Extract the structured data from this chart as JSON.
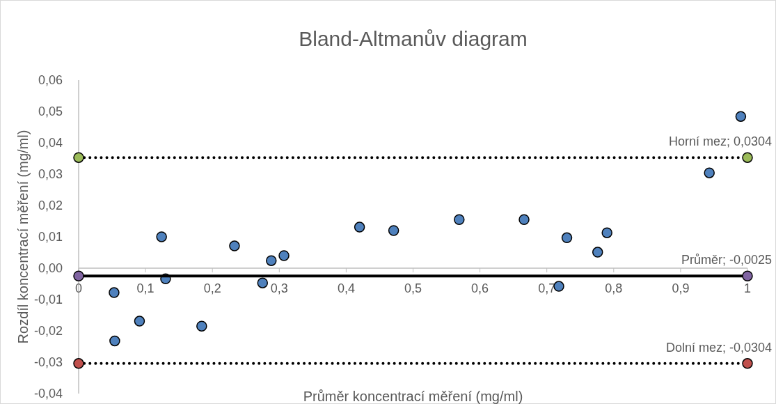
{
  "chart_data": {
    "type": "scatter",
    "title": "Bland-Altmanův diagram",
    "xlabel": "Průměr koncentrací měření (mg/ml)",
    "ylabel": "Rozdíl koncentrací měření (mg/ml)",
    "xlim": [
      0,
      1
    ],
    "xticks": [
      0,
      {
        "value": 0.1,
        "label": "0,1"
      },
      {
        "value": 0.2,
        "label": "0,2"
      },
      {
        "value": 0.3,
        "label": "0,3"
      },
      {
        "value": 0.4,
        "label": "0,4"
      },
      {
        "value": 0.5,
        "label": "0,5"
      },
      {
        "value": 0.6,
        "label": "0,6"
      },
      {
        "value": 0.7,
        "label": "0,7"
      },
      {
        "value": 0.8,
        "label": "0,8"
      },
      {
        "value": 0.9,
        "label": "0,9"
      },
      1
    ],
    "ylim": [
      -0.04,
      0.06
    ],
    "yticks": [
      {
        "value": -0.04,
        "label": "-0,04"
      },
      {
        "value": -0.03,
        "label": "-0,03"
      },
      {
        "value": -0.02,
        "label": "-0,02"
      },
      {
        "value": -0.01,
        "label": "-0,01"
      },
      {
        "value": 0,
        "label": "0,00"
      },
      {
        "value": 0.01,
        "label": "0,01"
      },
      {
        "value": 0.02,
        "label": "0,02"
      },
      {
        "value": 0.03,
        "label": "0,03"
      },
      {
        "value": 0.04,
        "label": "0,04"
      },
      {
        "value": 0.05,
        "label": "0,05"
      },
      {
        "value": 0.06,
        "label": "0,06"
      }
    ],
    "grid": false,
    "marker": "circle",
    "ref_lines": [
      {
        "axis": "y",
        "value": 0.0353,
        "label": "Horní mez; 0,0304",
        "color": "#000000",
        "line_style": "dotted"
      },
      {
        "axis": "y",
        "value": -0.0304,
        "label": "Dolní mez; -0,0304",
        "color": "#000000",
        "line_style": "dotted"
      }
    ],
    "series": [
      {
        "type": "scatter",
        "color": "#4f81bd",
        "x": [
          0.053,
          0.054,
          0.091,
          0.124,
          0.13,
          0.184,
          0.233,
          0.275,
          0.288,
          0.307,
          0.42,
          0.471,
          0.569,
          0.666,
          0.718,
          0.73,
          0.776,
          0.79,
          0.943,
          0.99
        ],
        "values": [
          -0.0078,
          -0.0232,
          -0.0169,
          0.01,
          -0.0034,
          -0.0185,
          0.0071,
          -0.0047,
          0.0024,
          0.004,
          0.0131,
          0.012,
          0.0155,
          0.0155,
          -0.0058,
          0.0097,
          0.0051,
          0.0113,
          0.0304,
          0.0484
        ]
      },
      {
        "color": "#9bbb59",
        "x": [
          0,
          1
        ],
        "values": [
          0.0353,
          0.0353
        ]
      },
      {
        "type": "line",
        "name": "Průměr; -0,0025",
        "color": "#000000",
        "marker": "none",
        "line_style": "solid",
        "x": [
          0,
          1
        ],
        "values": [
          -0.0025,
          -0.0025
        ]
      },
      {
        "color": "#8064a2",
        "x": [
          0,
          1
        ],
        "values": [
          -0.0025,
          -0.0025
        ]
      },
      {
        "color": "#c0504d",
        "x": [
          0,
          1
        ],
        "values": [
          -0.0304,
          -0.0304
        ]
      }
    ]
  }
}
